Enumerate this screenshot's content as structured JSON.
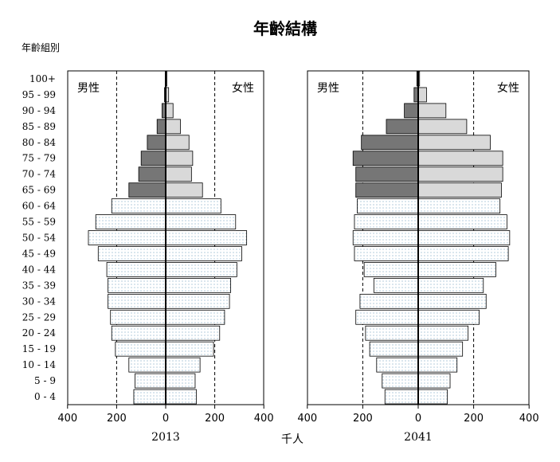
{
  "title": "年齡結構",
  "y_axis_title": "年齡組別",
  "x_axis_title": "千人",
  "sex_labels": {
    "male": "男性",
    "female": "女性"
  },
  "colors": {
    "male_elderly": "#767676",
    "female_elderly": "#d9d9d9",
    "dot_pattern": "#7fa8c4",
    "reference_line": "#000000"
  },
  "chart_data": {
    "type": "bar",
    "orientation": "horizontal",
    "style": "population pyramid",
    "categories": [
      "0 - 4",
      "5 - 9",
      "10 - 14",
      "15 - 19",
      "20 - 24",
      "25 - 29",
      "30 - 34",
      "35 - 39",
      "40 - 44",
      "45 - 49",
      "50 - 54",
      "55 - 59",
      "60 - 64",
      "65 - 69",
      "70 - 74",
      "75 - 79",
      "80 - 84",
      "85 - 89",
      "90 - 94",
      "95 - 99",
      "100+"
    ],
    "xlabel": "千人",
    "ylabel": "年齡組別",
    "xlim": [
      -400,
      400
    ],
    "xticks": [
      -400,
      -200,
      0,
      200,
      400
    ],
    "xtick_labels": [
      "400",
      "200",
      "0",
      "200",
      "400"
    ],
    "reference_lines": [
      -200,
      200
    ],
    "shading": "ages 65+ drawn in solid grey, younger ages with a dotted pattern",
    "grid": false,
    "panels": [
      {
        "label": "2013",
        "series": [
          {
            "name": "男性",
            "values": [
              130,
              125,
              150,
              205,
              220,
              225,
              235,
              235,
              240,
              275,
              315,
              285,
              220,
              150,
              110,
              100,
              75,
              35,
              15,
              5,
              2
            ]
          },
          {
            "name": "女性",
            "values": [
              125,
              120,
              140,
              195,
              220,
              240,
              260,
              265,
              290,
              310,
              330,
              285,
              225,
              150,
              105,
              110,
              95,
              60,
              30,
              12,
              5
            ]
          }
        ]
      },
      {
        "label": "2041",
        "series": [
          {
            "name": "男性",
            "values": [
              120,
              130,
              150,
              175,
              190,
              225,
              210,
              160,
              195,
              230,
              235,
              230,
              220,
              225,
              225,
              235,
              205,
              115,
              50,
              15,
              5
            ]
          },
          {
            "name": "女性",
            "values": [
              105,
              115,
              140,
              160,
              180,
              220,
              245,
              235,
              280,
              325,
              330,
              320,
              295,
              300,
              305,
              305,
              260,
              175,
              100,
              30,
              5
            ]
          }
        ]
      }
    ]
  }
}
